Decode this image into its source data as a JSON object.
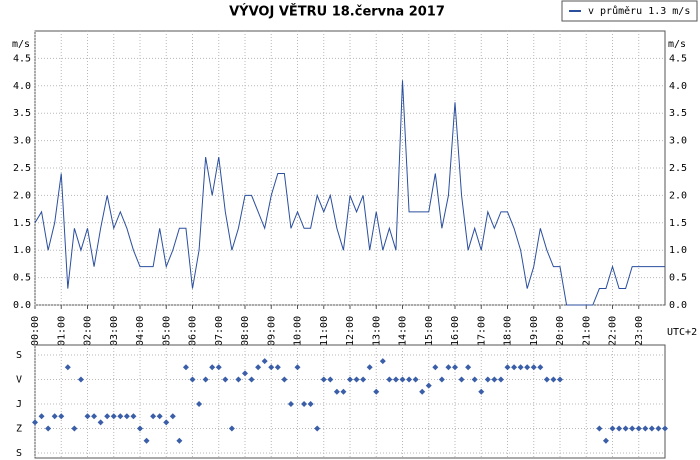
{
  "chart_data": [
    {
      "type": "line",
      "title": "VÝVOJ VĚTRU  18.června 2017",
      "y_label": "m/s",
      "x_note": "UTC+2",
      "x": [
        0,
        0.25,
        0.5,
        0.75,
        1,
        1.25,
        1.5,
        1.75,
        2,
        2.25,
        2.5,
        2.75,
        3,
        3.25,
        3.5,
        3.75,
        4,
        4.25,
        4.5,
        4.75,
        5,
        5.25,
        5.5,
        5.75,
        6,
        6.25,
        6.5,
        6.75,
        7,
        7.25,
        7.5,
        7.75,
        8,
        8.25,
        8.5,
        8.75,
        9,
        9.25,
        9.5,
        9.75,
        10,
        10.25,
        10.5,
        10.75,
        11,
        11.25,
        11.5,
        11.75,
        12,
        12.25,
        12.5,
        12.75,
        13,
        13.25,
        13.5,
        13.75,
        14,
        14.25,
        14.5,
        14.75,
        15,
        15.25,
        15.5,
        15.75,
        16,
        16.25,
        16.5,
        16.75,
        17,
        17.25,
        17.5,
        17.75,
        18,
        18.25,
        18.5,
        18.75,
        19,
        19.25,
        19.5,
        19.75,
        20,
        20.25,
        20.5,
        20.75,
        21,
        21.25,
        21.5,
        21.75,
        22,
        22.25,
        22.5,
        22.75,
        23,
        23.25,
        23.5,
        23.75,
        24
      ],
      "series": [
        {
          "name": "v průměru 1.3 m/s",
          "color": "#2b4f9e",
          "values": [
            1.5,
            1.7,
            1.0,
            1.5,
            2.4,
            0.3,
            1.4,
            1.0,
            1.4,
            0.7,
            1.4,
            2.0,
            1.4,
            1.7,
            1.4,
            1.0,
            0.7,
            0.7,
            0.7,
            1.4,
            0.7,
            1.0,
            1.4,
            1.4,
            0.3,
            1.0,
            2.7,
            2.0,
            2.7,
            1.7,
            1.0,
            1.4,
            2.0,
            2.0,
            1.7,
            1.4,
            2.0,
            2.4,
            2.4,
            1.4,
            1.7,
            1.4,
            1.4,
            2.0,
            1.7,
            2.0,
            1.4,
            1.0,
            2.0,
            1.7,
            2.0,
            1.0,
            1.7,
            1.0,
            1.4,
            1.0,
            4.1,
            1.7,
            1.7,
            1.7,
            1.7,
            2.4,
            1.4,
            2.0,
            3.7,
            2.0,
            1.0,
            1.4,
            1.0,
            1.7,
            1.4,
            1.7,
            1.7,
            1.4,
            1.0,
            0.3,
            0.7,
            1.4,
            1.0,
            0.7,
            0.7,
            0,
            0,
            0,
            0,
            0,
            0.3,
            0.3,
            0.7,
            0.3,
            0.3,
            0.7,
            0.7,
            0.7,
            0.7,
            0.7,
            0.7
          ]
        }
      ],
      "xlim": [
        0,
        24
      ],
      "xticks": [
        {
          "value": 0,
          "label": "00:00"
        },
        {
          "value": 1,
          "label": "01:00"
        },
        {
          "value": 2,
          "label": "02:00"
        },
        {
          "value": 3,
          "label": "03:00"
        },
        {
          "value": 4,
          "label": "04:00"
        },
        {
          "value": 5,
          "label": "05:00"
        },
        {
          "value": 6,
          "label": "06:00"
        },
        {
          "value": 7,
          "label": "07:00"
        },
        {
          "value": 8,
          "label": "08:00"
        },
        {
          "value": 9,
          "label": "09:00"
        },
        {
          "value": 10,
          "label": "10:00"
        },
        {
          "value": 11,
          "label": "11:00"
        },
        {
          "value": 12,
          "label": "12:00"
        },
        {
          "value": 13,
          "label": "13:00"
        },
        {
          "value": 14,
          "label": "14:00"
        },
        {
          "value": 15,
          "label": "15:00"
        },
        {
          "value": 16,
          "label": "16:00"
        },
        {
          "value": 17,
          "label": "17:00"
        },
        {
          "value": 18,
          "label": "18:00"
        },
        {
          "value": 19,
          "label": "19:00"
        },
        {
          "value": 20,
          "label": "20:00"
        },
        {
          "value": 21,
          "label": "21:00"
        },
        {
          "value": 22,
          "label": "22:00"
        },
        {
          "value": 23,
          "label": "23:00"
        }
      ],
      "ylim": [
        0,
        5
      ],
      "yticks": [
        {
          "value": 0,
          "label": "0.0"
        },
        {
          "value": 0.5,
          "label": "0.5"
        },
        {
          "value": 1,
          "label": "1.0"
        },
        {
          "value": 1.5,
          "label": "1.5"
        },
        {
          "value": 2,
          "label": "2.0"
        },
        {
          "value": 2.5,
          "label": "2.5"
        },
        {
          "value": 3,
          "label": "3.0"
        },
        {
          "value": 3.5,
          "label": "3.5"
        },
        {
          "value": 4,
          "label": "4.0"
        },
        {
          "value": 4.5,
          "label": "4.5"
        }
      ],
      "grid": true
    },
    {
      "type": "scatter",
      "x": [
        0,
        0.25,
        0.5,
        0.75,
        1,
        1.25,
        1.5,
        1.75,
        2,
        2.25,
        2.5,
        2.75,
        3,
        3.25,
        3.5,
        3.75,
        4,
        4.25,
        4.5,
        4.75,
        5,
        5.25,
        5.5,
        5.75,
        6,
        6.25,
        6.5,
        6.75,
        7,
        7.25,
        7.5,
        7.75,
        8,
        8.25,
        8.5,
        8.75,
        9,
        9.25,
        9.5,
        9.75,
        10,
        10.25,
        10.5,
        10.75,
        11,
        11.25,
        11.5,
        11.75,
        12,
        12.25,
        12.5,
        12.75,
        13,
        13.25,
        13.5,
        13.75,
        14,
        14.25,
        14.5,
        14.75,
        15,
        15.25,
        15.5,
        15.75,
        16,
        16.25,
        16.5,
        16.75,
        17,
        17.25,
        17.5,
        17.75,
        18,
        18.25,
        18.5,
        18.75,
        19,
        19.25,
        19.5,
        19.75,
        20,
        20.25,
        20.5,
        20.75,
        21,
        21.25,
        21.5,
        21.75,
        22,
        22.25,
        22.5,
        22.75,
        23,
        23.25,
        23.5,
        23.75,
        24
      ],
      "values": [
        247.5,
        225,
        270,
        225,
        225,
        45,
        270,
        90,
        225,
        225,
        247.5,
        225,
        225,
        225,
        225,
        225,
        270,
        315,
        225,
        225,
        247.5,
        225,
        315,
        45,
        90,
        180,
        90,
        45,
        45,
        90,
        270,
        90,
        67.5,
        90,
        45,
        22.5,
        45,
        45,
        90,
        180,
        45,
        180,
        180,
        270,
        90,
        90,
        135,
        135,
        90,
        90,
        90,
        45,
        135,
        22.5,
        90,
        90,
        90,
        90,
        90,
        135,
        112.5,
        45,
        90,
        45,
        45,
        90,
        45,
        90,
        135,
        90,
        90,
        90,
        45,
        45,
        45,
        45,
        45,
        45,
        90,
        90,
        90,
        null,
        null,
        null,
        null,
        null,
        270,
        315,
        270,
        270,
        270,
        270,
        270,
        270,
        270,
        270,
        270
      ],
      "color": "#3a5ea8",
      "xlim": [
        0,
        24
      ],
      "ylim": [
        0,
        360
      ],
      "yticks": [
        {
          "value": 0,
          "label": "S"
        },
        {
          "value": 90,
          "label": "V"
        },
        {
          "value": 180,
          "label": "J"
        },
        {
          "value": 270,
          "label": "Z"
        },
        {
          "value": 360,
          "label": "S"
        }
      ],
      "grid": true
    }
  ]
}
